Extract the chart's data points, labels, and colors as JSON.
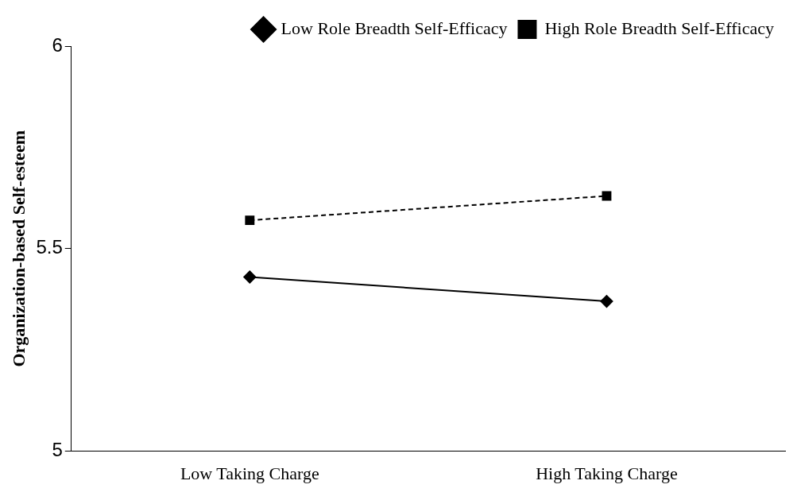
{
  "chart_data": {
    "type": "line",
    "ylabel": "Organization-based Self-esteem",
    "categories": [
      "Low Taking Charge",
      "High Taking Charge"
    ],
    "series": [
      {
        "name": "Low Role Breadth Self-Efficacy",
        "color": "#000000",
        "values": [
          5.43,
          5.37
        ],
        "marker": "diamond",
        "line_style": "solid"
      },
      {
        "name": "High Role Breadth Self-Efficacy",
        "color": "#000000",
        "values": [
          5.57,
          5.63
        ],
        "marker": "square",
        "line_style": "dashed"
      }
    ],
    "ylim": [
      5,
      6
    ],
    "yticks": [
      5,
      5.5,
      6
    ],
    "legend": "top right"
  }
}
